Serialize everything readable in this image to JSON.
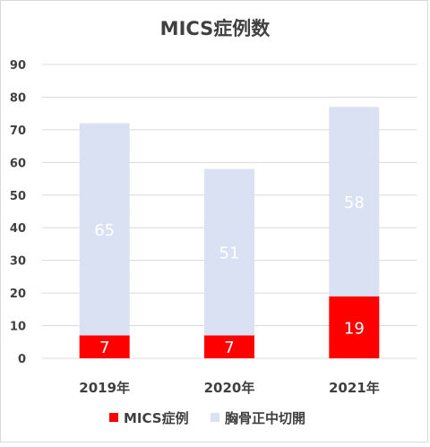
{
  "chart_data": {
    "type": "bar",
    "stacked": true,
    "title": "MICS症例数",
    "categories": [
      "2019年",
      "2020年",
      "2021年"
    ],
    "series": [
      {
        "name": "MICS症例",
        "values": [
          7,
          7,
          19
        ],
        "color": "#ff0000",
        "label_color": "#ffffff"
      },
      {
        "name": "胸骨正中切開",
        "values": [
          65,
          51,
          58
        ],
        "color": "#d9e1f2",
        "label_color": "#ffffff"
      }
    ],
    "ylim": [
      0,
      90
    ],
    "yticks": [
      0,
      10,
      20,
      30,
      40,
      50,
      60,
      70,
      80,
      90
    ],
    "grid": true,
    "legend_position": "bottom"
  },
  "colors": {
    "title": "#404040",
    "axis_text": "#404040",
    "gridline": "#d9d9d9"
  }
}
